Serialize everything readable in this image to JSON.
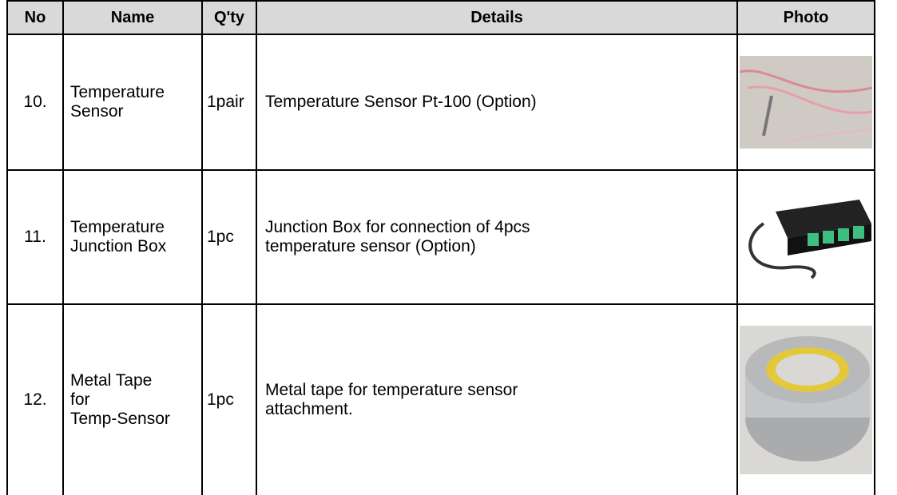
{
  "table": {
    "header": [
      "No",
      "Name",
      "Q'ty",
      "Details",
      "Photo"
    ],
    "rows": [
      [
        "10.",
        "Temperature\nSensor",
        "1pair",
        "Temperature Sensor Pt-100 (Option)"
      ],
      [
        "11.",
        "Temperature\nJunction Box",
        "1pc",
        "Junction Box for connection of 4pcs\ntemperature sensor (Option)"
      ],
      [
        "12.",
        "Metal Tape\nfor\nTemp-Sensor",
        "1pc",
        "Metal tape for temperature sensor\nattachment."
      ]
    ]
  }
}
